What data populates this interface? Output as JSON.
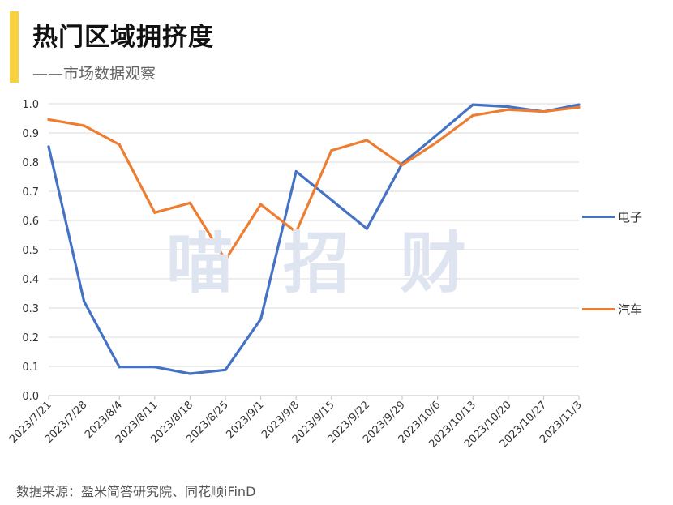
{
  "header": {
    "title": "热门区域拥挤度",
    "subtitle": "——市场数据观察"
  },
  "watermark": "喵招财",
  "source": "数据来源：盈米简答研究院、同花顺iFinD",
  "colors": {
    "accent": "#F7D23E",
    "electronics": "#4472C4",
    "auto": "#ED7D31",
    "grid": "#d9d9d9"
  },
  "chart_data": {
    "type": "line",
    "categories": [
      "2023/7/21",
      "2023/7/28",
      "2023/8/4",
      "2023/8/11",
      "2023/8/18",
      "2023/8/25",
      "2023/9/1",
      "2023/9/8",
      "2023/9/15",
      "2023/9/22",
      "2023/9/29",
      "2023/10/6",
      "2023/10/13",
      "2023/10/20",
      "2023/10/27",
      "2023/11/3"
    ],
    "series": [
      {
        "name": "电子",
        "color": "#4472C4",
        "values": [
          0.853,
          0.323,
          0.098,
          0.098,
          0.075,
          0.088,
          0.262,
          0.768,
          0.67,
          0.572,
          0.795,
          0.895,
          0.997,
          0.99,
          0.973,
          0.997
        ]
      },
      {
        "name": "汽车",
        "color": "#ED7D31",
        "values": [
          0.946,
          0.925,
          0.86,
          0.627,
          0.66,
          0.465,
          0.655,
          0.56,
          0.84,
          0.875,
          0.79,
          0.87,
          0.96,
          0.98,
          0.973,
          0.988
        ]
      }
    ],
    "ylim": [
      0,
      1.0
    ],
    "yticks": [
      "0.0",
      "0.1",
      "0.2",
      "0.3",
      "0.4",
      "0.5",
      "0.6",
      "0.7",
      "0.8",
      "0.9",
      "1.0"
    ],
    "grid": true,
    "legend": "right"
  }
}
